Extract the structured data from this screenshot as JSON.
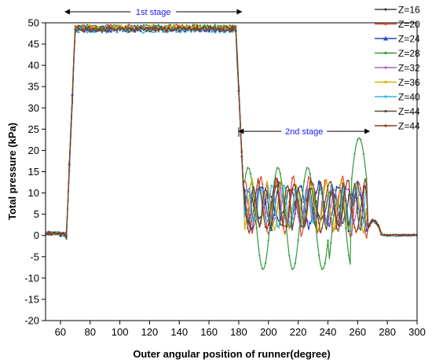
{
  "chart_data": {
    "type": "line",
    "xlabel": "Outer angular position of runner(degree)",
    "ylabel": "Total pressure (kPa)",
    "xlim": [
      50,
      300
    ],
    "ylim": [
      -20,
      50
    ],
    "xticks": [
      60,
      80,
      100,
      120,
      140,
      160,
      180,
      200,
      220,
      240,
      260,
      280,
      300
    ],
    "yticks": [
      -20,
      -15,
      -10,
      -5,
      0,
      5,
      10,
      15,
      20,
      25,
      30,
      35,
      40,
      45,
      50
    ],
    "grid": false,
    "legend_position": "right",
    "annotations": [
      {
        "text": "1st stage",
        "x_from": 63,
        "x_to": 182,
        "y": 50
      },
      {
        "text": "2nd stage",
        "x_from": 180,
        "x_to": 268,
        "y": 24.5
      }
    ],
    "series": [
      {
        "name": "Z=16",
        "color": "#404040",
        "marker": "dot",
        "plateau": 48.8,
        "amp": 3.5,
        "period": 14,
        "phase": 0.0
      },
      {
        "name": "Z=20",
        "color": "#e8412d",
        "marker": "dot",
        "plateau": 49.0,
        "amp": 6.5,
        "period": 11,
        "phase": 1.2
      },
      {
        "name": "Z=24",
        "color": "#2447c8",
        "marker": "triangle",
        "plateau": 48.5,
        "amp": 5.0,
        "period": 13,
        "phase": 2.1
      },
      {
        "name": "Z=28",
        "color": "#2e9a3a",
        "marker": "dot",
        "plateau": 49.0,
        "amp": 12.0,
        "period": 20,
        "phase": 0.5
      },
      {
        "name": "Z=32",
        "color": "#a067c8",
        "marker": "dot",
        "plateau": 48.7,
        "amp": 4.0,
        "period": 9,
        "phase": 3.0
      },
      {
        "name": "Z=36",
        "color": "#c9b800",
        "marker": "dot",
        "plateau": 48.9,
        "amp": 5.5,
        "period": 10,
        "phase": 4.2
      },
      {
        "name": "Z=40",
        "color": "#2db5e6",
        "marker": "dot",
        "plateau": 48.2,
        "amp": 4.5,
        "period": 8,
        "phase": 5.0
      },
      {
        "name": "Z=44",
        "color": "#5a4a3a",
        "marker": "dot",
        "plateau": 48.4,
        "amp": 5.0,
        "period": 7.5,
        "phase": 1.8
      },
      {
        "name": "Z=44",
        "color": "#8b3a1a",
        "marker": "dot",
        "plateau": 48.6,
        "amp": 5.5,
        "period": 12,
        "phase": 2.6
      }
    ]
  }
}
